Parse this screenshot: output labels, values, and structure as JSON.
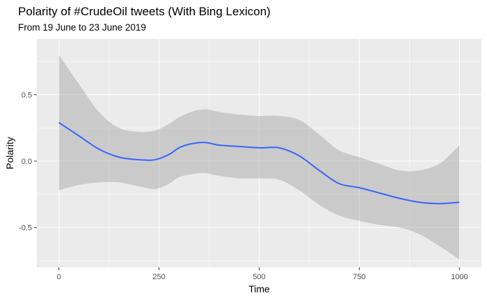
{
  "chart_data": {
    "type": "line",
    "title": "Polarity of #CrudeOil tweets (With Bing Lexicon)",
    "subtitle": "From 19 June to 23 June 2019",
    "xlabel": "Time",
    "ylabel": "Polarity",
    "xlim": [
      -55,
      1055
    ],
    "ylim": [
      -0.8,
      0.92
    ],
    "x_ticks": [
      0,
      250,
      500,
      750,
      1000
    ],
    "x_tick_labels": [
      "0",
      "250",
      "500",
      "750",
      "1000"
    ],
    "y_ticks": [
      -0.5,
      0.0,
      0.5
    ],
    "y_tick_labels": [
      "-0.5",
      "0.0",
      "0.5"
    ],
    "grid": true,
    "colors": {
      "panel": "#ebebeb",
      "grid": "#ffffff",
      "line": "#3366ff",
      "band": "#999999"
    },
    "series": [
      {
        "type": "smooth_line",
        "x": [
          0,
          50,
          100,
          150,
          200,
          240,
          275,
          300,
          330,
          365,
          400,
          450,
          500,
          550,
          600,
          650,
          700,
          750,
          800,
          850,
          900,
          950,
          1000
        ],
        "y": [
          0.29,
          0.19,
          0.09,
          0.03,
          0.01,
          0.01,
          0.05,
          0.1,
          0.13,
          0.14,
          0.12,
          0.11,
          0.1,
          0.1,
          0.04,
          -0.07,
          -0.17,
          -0.2,
          -0.24,
          -0.28,
          -0.31,
          -0.32,
          -0.31
        ],
        "lower": [
          -0.22,
          -0.18,
          -0.16,
          -0.16,
          -0.19,
          -0.21,
          -0.17,
          -0.12,
          -0.1,
          -0.09,
          -0.11,
          -0.13,
          -0.13,
          -0.14,
          -0.22,
          -0.33,
          -0.41,
          -0.45,
          -0.48,
          -0.5,
          -0.55,
          -0.64,
          -0.74
        ],
        "upper": [
          0.8,
          0.58,
          0.37,
          0.25,
          0.22,
          0.23,
          0.28,
          0.33,
          0.37,
          0.39,
          0.37,
          0.35,
          0.34,
          0.34,
          0.31,
          0.2,
          0.08,
          0.03,
          -0.02,
          -0.07,
          -0.07,
          -0.02,
          0.12
        ]
      }
    ]
  }
}
